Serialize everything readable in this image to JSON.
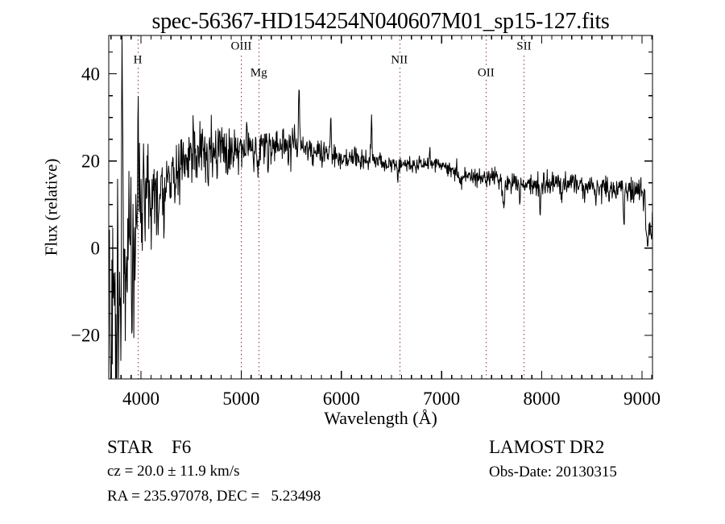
{
  "chart_data": {
    "type": "line",
    "title": "spec-56367-HD154254N040607M01_sp15-127.fits",
    "xlabel": "Wavelength (Å)",
    "ylabel": "Flux (relative)",
    "xlim": [
      3678,
      9105
    ],
    "ylim": [
      -30,
      48.8
    ],
    "grid": false,
    "x_ticks": {
      "major": [
        4000,
        5000,
        6000,
        7000,
        8000,
        9000
      ],
      "labels": [
        "4000",
        "5000",
        "6000",
        "7000",
        "8000",
        "9000"
      ],
      "minor_step": 100
    },
    "y_ticks": {
      "major": [
        -20,
        0,
        20,
        40
      ],
      "labels": [
        "−20",
        "0",
        "20",
        "40"
      ],
      "minor_step": 5
    },
    "spectral_lines": [
      {
        "label": "H",
        "wavelength": 3968,
        "row": 1
      },
      {
        "label": "OIII",
        "wavelength": 5000,
        "row": 0
      },
      {
        "label": "Mg",
        "wavelength": 5175,
        "row": 2
      },
      {
        "label": "NII",
        "wavelength": 6578,
        "row": 1
      },
      {
        "label": "OII",
        "wavelength": 7443,
        "row": 2
      },
      {
        "label": "SII",
        "wavelength": 7822,
        "row": 0
      }
    ],
    "line_marker_color": "#993333",
    "spectrum_color": "#000000",
    "continuum": [
      [
        3682,
        -6
      ],
      [
        3710,
        -10
      ],
      [
        3740,
        -9
      ],
      [
        3770,
        -11
      ],
      [
        3800,
        -10
      ],
      [
        3830,
        -6
      ],
      [
        3860,
        -3
      ],
      [
        3900,
        1
      ],
      [
        3950,
        5
      ],
      [
        4000,
        8
      ],
      [
        4050,
        10.5
      ],
      [
        4100,
        12
      ],
      [
        4200,
        14.5
      ],
      [
        4300,
        16
      ],
      [
        4400,
        18.5
      ],
      [
        4500,
        20.5
      ],
      [
        4600,
        22.5
      ],
      [
        4700,
        23
      ],
      [
        4800,
        23.5
      ],
      [
        4900,
        23
      ],
      [
        5000,
        23
      ],
      [
        5100,
        23
      ],
      [
        5200,
        23.5
      ],
      [
        5300,
        23.5
      ],
      [
        5400,
        24
      ],
      [
        5500,
        24
      ],
      [
        5600,
        23.5
      ],
      [
        5700,
        22.5
      ],
      [
        5800,
        21.5
      ],
      [
        5900,
        21
      ],
      [
        6000,
        20.5
      ],
      [
        6100,
        20.5
      ],
      [
        6200,
        20
      ],
      [
        6300,
        19.8
      ],
      [
        6400,
        19.5
      ],
      [
        6500,
        19.3
      ],
      [
        6600,
        19
      ],
      [
        6700,
        19.3
      ],
      [
        6800,
        19.5
      ],
      [
        6900,
        19.2
      ],
      [
        7000,
        19
      ],
      [
        7100,
        18
      ],
      [
        7200,
        17
      ],
      [
        7300,
        16.5
      ],
      [
        7400,
        16.2
      ],
      [
        7500,
        16
      ],
      [
        7600,
        15.6
      ],
      [
        7700,
        15.3
      ],
      [
        7800,
        15
      ],
      [
        7900,
        14.8
      ],
      [
        8000,
        14.5
      ],
      [
        8100,
        14.8
      ],
      [
        8200,
        15
      ],
      [
        8300,
        14.8
      ],
      [
        8400,
        14.5
      ],
      [
        8500,
        14
      ],
      [
        8600,
        13.8
      ],
      [
        8700,
        13.5
      ],
      [
        8800,
        13.4
      ],
      [
        8900,
        13.2
      ],
      [
        9000,
        13
      ],
      [
        9103,
        12.3
      ]
    ],
    "noise_sigma": [
      [
        3682,
        13
      ],
      [
        3750,
        13
      ],
      [
        3800,
        12
      ],
      [
        3850,
        10
      ],
      [
        3900,
        8
      ],
      [
        3950,
        7
      ],
      [
        4000,
        6
      ],
      [
        4100,
        5
      ],
      [
        4200,
        4.2
      ],
      [
        4300,
        3.8
      ],
      [
        4500,
        3.2
      ],
      [
        4700,
        2.8
      ],
      [
        5000,
        2.3
      ],
      [
        5300,
        2.0
      ],
      [
        5600,
        1.6
      ],
      [
        5900,
        1.4
      ],
      [
        6200,
        1.2
      ],
      [
        6500,
        1.0
      ],
      [
        6800,
        0.9
      ],
      [
        7100,
        0.9
      ],
      [
        7400,
        1.0
      ],
      [
        7700,
        1.1
      ],
      [
        8000,
        1.3
      ],
      [
        8300,
        1.2
      ],
      [
        8600,
        1.2
      ],
      [
        8900,
        1.4
      ],
      [
        9103,
        1.6
      ]
    ],
    "features": [
      [
        3700,
        -20,
        5
      ],
      [
        3755,
        -28,
        5
      ],
      [
        3812,
        48,
        4
      ],
      [
        3845,
        -18,
        4
      ],
      [
        3880,
        20,
        4
      ],
      [
        3910,
        -14,
        4
      ],
      [
        3934,
        -10,
        4
      ],
      [
        3970,
        22,
        4
      ],
      [
        4026,
        14,
        4
      ],
      [
        4102,
        -10,
        5
      ],
      [
        4170,
        -12,
        4
      ],
      [
        4226,
        -8,
        4
      ],
      [
        4340,
        -8,
        5
      ],
      [
        4520,
        6,
        4
      ],
      [
        4668,
        -10,
        4
      ],
      [
        4755,
        -7,
        4
      ],
      [
        4861,
        -6,
        5
      ],
      [
        4920,
        -5,
        4
      ],
      [
        5055,
        5,
        4
      ],
      [
        5170,
        -5,
        7
      ],
      [
        5270,
        -7,
        4
      ],
      [
        5577,
        14,
        5
      ],
      [
        5893,
        9.5,
        5
      ],
      [
        6132,
        4,
        4
      ],
      [
        6300,
        10.5,
        5
      ],
      [
        6563,
        -3.5,
        5
      ],
      [
        6880,
        3,
        5
      ],
      [
        7190,
        -2.5,
        8
      ],
      [
        7620,
        -5.5,
        12
      ],
      [
        7780,
        -4.5,
        6
      ],
      [
        7985,
        -7,
        5
      ],
      [
        8200,
        -3,
        7
      ],
      [
        8430,
        -2.2,
        5
      ],
      [
        8540,
        -2.5,
        5
      ],
      [
        8670,
        -2.5,
        5
      ],
      [
        8820,
        -7.5,
        6
      ],
      [
        8920,
        -2.5,
        5
      ],
      [
        9055,
        -12.6,
        14
      ],
      [
        9090,
        -9,
        10
      ]
    ],
    "samples": 1340,
    "seed": 1337
  },
  "footer": {
    "class_label": "STAR    F6",
    "cz": "cz = 20.0 ± 11.9 km/s",
    "radec": "RA = 235.97078, DEC =   5.23498",
    "survey": "LAMOST DR2",
    "obs_date": "Obs-Date: 20130315"
  }
}
